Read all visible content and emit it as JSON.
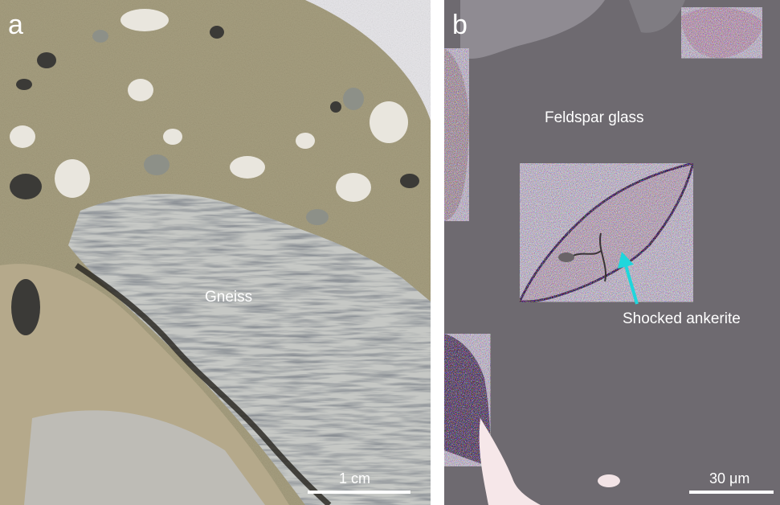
{
  "panels": [
    {
      "letter": "a",
      "labels": {
        "rock": "Gneiss"
      },
      "scale_bar": {
        "text": "1 cm"
      }
    },
    {
      "letter": "b",
      "labels": {
        "matrix": "Feldspar glass",
        "grain": "Shocked ankerite"
      },
      "scale_bar": {
        "text": "30 μm"
      }
    }
  ],
  "colors": {
    "arrow": "#1fd6dc",
    "label_text": "#ffffff",
    "breccia_matrix": "#a9a081",
    "gneiss": "#c4c6c3",
    "glass": "#6f6a70",
    "ankerite": "#b3a9a6"
  }
}
